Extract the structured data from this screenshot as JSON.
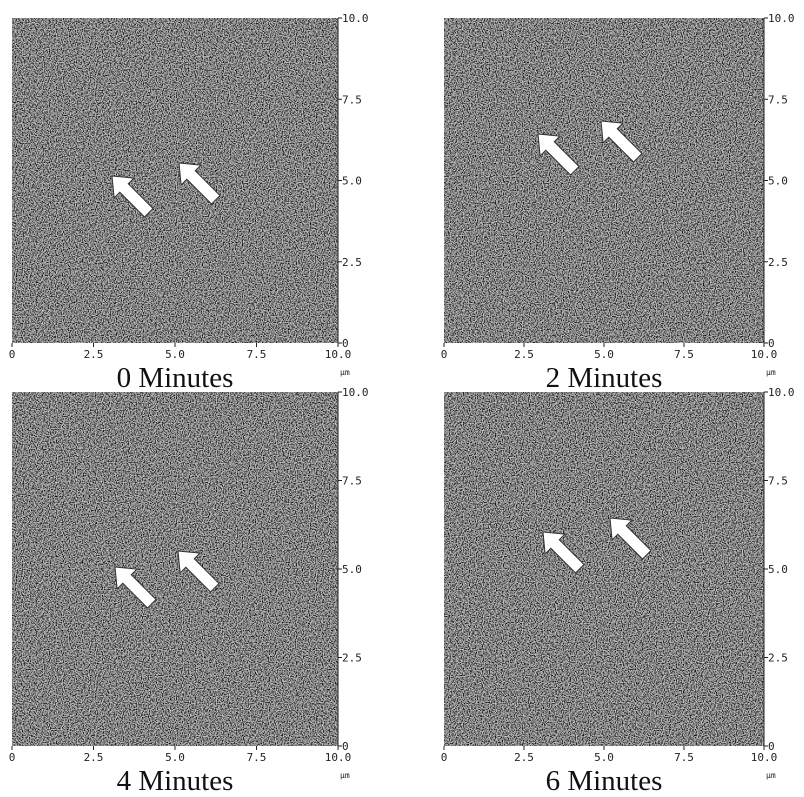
{
  "panels": [
    {
      "caption": "0 Minutes",
      "x_tick_labels": [
        "0",
        "2.5",
        "5.0",
        "7.5",
        "10.0"
      ],
      "y_tick_labels": [
        "0",
        "2.5",
        "5.0",
        "7.5",
        "10.0"
      ],
      "unit": "μm"
    },
    {
      "caption": "2 Minutes",
      "x_tick_labels": [
        "0",
        "2.5",
        "5.0",
        "7.5",
        "10.0"
      ],
      "y_tick_labels": [
        "0",
        "2.5",
        "5.0",
        "7.5",
        "10.0"
      ],
      "unit": "μm"
    },
    {
      "caption": "4 Minutes",
      "x_tick_labels": [
        "0",
        "2.5",
        "5.0",
        "7.5",
        "10.0"
      ],
      "y_tick_labels": [
        "0",
        "2.5",
        "5.0",
        "7.5",
        "10.0"
      ],
      "unit": "μm"
    },
    {
      "caption": "6 Minutes",
      "x_tick_labels": [
        "0",
        "2.5",
        "5.0",
        "7.5",
        "10.0"
      ],
      "y_tick_labels": [
        "0",
        "2.5",
        "5.0",
        "7.5",
        "10.0"
      ],
      "unit": "μm"
    }
  ]
}
